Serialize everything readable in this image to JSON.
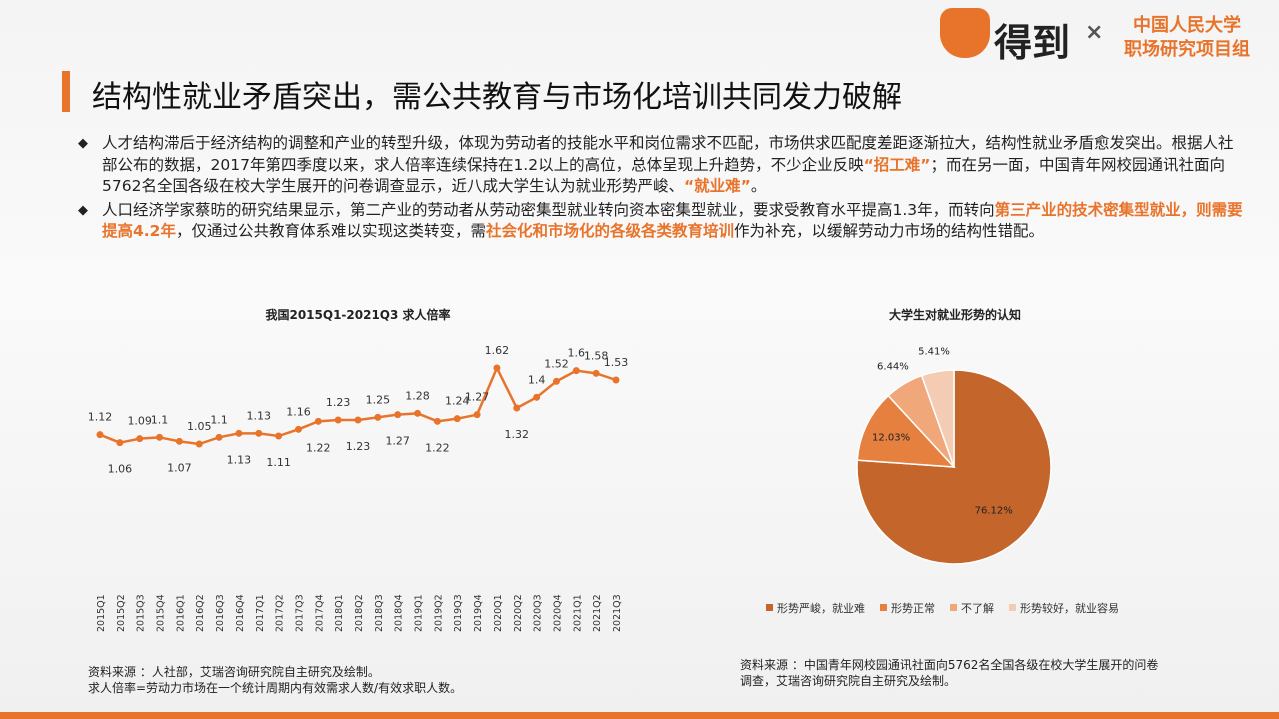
{
  "header": {
    "logo": "得到",
    "times": "×",
    "partner_line1": "中国人民大学",
    "partner_line2": "职场研究项目组"
  },
  "title": "结构性就业矛盾突出，需公共教育与市场化培训共同发力破解",
  "bullets": [
    [
      {
        "text": "人才结构滞后于经济结构的调整和产业的转型升级，体现为劳动者的技能水平和岗位需求不匹配，市场供求匹配度差距逐渐拉大，结构性就业矛盾愈发突出。根据人社部公布的数据，2017年第四季度以来，求人倍率连续保持在1.2以上的高位，总体呈现上升趋势，不少企业反映",
        "em": false
      },
      {
        "text": "“招工难”",
        "em": true
      },
      {
        "text": "；而在另一面，中国青年网校园通讯社面向5762名全国各级在校大学生展开的问卷调查显示，近八成大学生认为就业形势严峻、",
        "em": false
      },
      {
        "text": "“就业难”",
        "em": true
      },
      {
        "text": "。",
        "em": false
      }
    ],
    [
      {
        "text": "人口经济学家蔡昉的研究结果显示，第二产业的劳动者从劳动密集型就业转向资本密集型就业，要求受教育水平提高1.3年，而转向",
        "em": false
      },
      {
        "text": "第三产业的技术密集型就业，则需要提高4.2年",
        "em": true
      },
      {
        "text": "，仅通过公共教育体系难以实现这类转变，需",
        "em": false
      },
      {
        "text": "社会化和市场化的各级各类教育培训",
        "em": true
      },
      {
        "text": "作为补充，以缓解劳动力市场的结构性错配。",
        "em": false
      }
    ]
  ],
  "chart_data": [
    {
      "type": "line",
      "title": "我国2015Q1-2021Q3 求人倍率",
      "color": "#e8742c",
      "categories": [
        "2015Q1",
        "2015Q2",
        "2015Q3",
        "2015Q4",
        "2016Q1",
        "2016Q2",
        "2016Q3",
        "2016Q4",
        "2017Q1",
        "2017Q2",
        "2017Q3",
        "2017Q4",
        "2018Q1",
        "2018Q2",
        "2018Q3",
        "2018Q4",
        "2019Q1",
        "2019Q2",
        "2019Q3",
        "2019Q4",
        "2020Q1",
        "2020Q2",
        "2020Q3",
        "2020Q4",
        "2021Q1",
        "2021Q2",
        "2021Q3"
      ],
      "values": [
        1.12,
        1.06,
        1.09,
        1.1,
        1.07,
        1.05,
        1.1,
        1.13,
        1.13,
        1.11,
        1.16,
        1.22,
        1.23,
        1.23,
        1.25,
        1.27,
        1.28,
        1.22,
        1.24,
        1.27,
        1.62,
        1.32,
        1.4,
        1.52,
        1.6,
        1.58,
        1.53
      ]
    },
    {
      "type": "pie",
      "title": "大学生对就业形势的认知",
      "categories": [
        "形势严峻，就业难",
        "形势正常",
        "不了解",
        "形势较好，就业容易"
      ],
      "values": [
        76.12,
        12.03,
        6.44,
        5.41
      ],
      "value_labels": [
        "76.12%",
        "12.03%",
        "6.44%",
        "5.41%"
      ],
      "colors": [
        "#c4652b",
        "#e5803f",
        "#f0a77a",
        "#f4cbb3"
      ]
    }
  ],
  "sources": {
    "left_line1": "资料来源 ：人社部，艾瑞咨询研究院自主研究及绘制。",
    "left_line2": "求人倍率=劳动力市场在一个统计周期内有效需求人数/有效求职人数。",
    "right": "资料来源 ：中国青年网校园通讯社面向5762名全国各级在校大学生展开的问卷调查，艾瑞咨询研究院自主研究及绘制。"
  }
}
